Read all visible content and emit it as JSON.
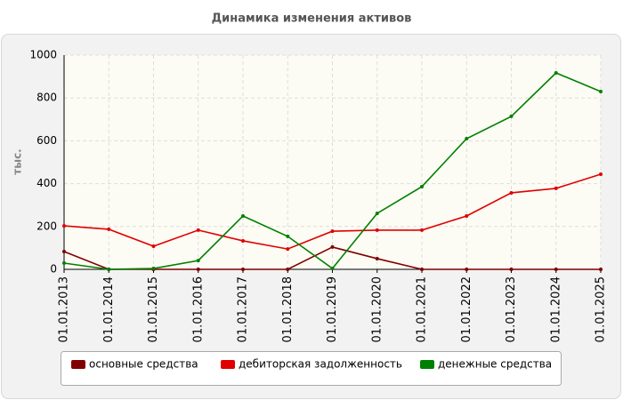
{
  "chart_data": {
    "type": "line",
    "title": "Динамика изменения активов",
    "y_label": "тыс.",
    "categories": [
      "01.01.2013",
      "01.01.2014",
      "01.01.2015",
      "01.01.2016",
      "01.01.2017",
      "01.01.2018",
      "01.01.2019",
      "01.01.2020",
      "01.01.2021",
      "01.01.2022",
      "01.01.2023",
      "01.01.2024",
      "01.01.2025"
    ],
    "series": [
      {
        "name": "основные средства",
        "color": "#800000",
        "values": [
          83,
          0,
          0,
          0,
          0,
          0,
          104,
          50,
          0,
          0,
          0,
          0,
          0
        ]
      },
      {
        "name": "дебиторская задолженность",
        "color": "#e00000",
        "values": [
          203,
          187,
          108,
          183,
          133,
          95,
          178,
          183,
          183,
          249,
          357,
          378,
          444
        ]
      },
      {
        "name": "денежные средства",
        "color": "#008000",
        "values": [
          29,
          0,
          4,
          41,
          249,
          154,
          4,
          261,
          386,
          610,
          714,
          917,
          830
        ]
      }
    ],
    "ylim": [
      0,
      1000
    ],
    "yticks": [
      0,
      200,
      400,
      600,
      800,
      1000
    ],
    "grid": true,
    "legend": "bottom"
  }
}
